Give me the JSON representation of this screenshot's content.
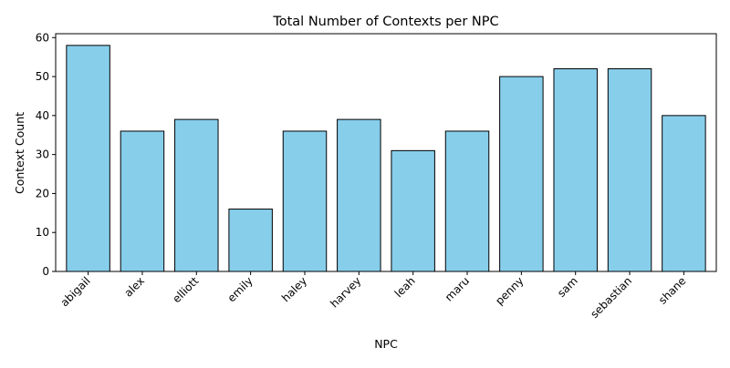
{
  "chart_data": {
    "type": "bar",
    "title": "Total Number of Contexts per NPC",
    "xlabel": "NPC",
    "ylabel": "Context Count",
    "categories": [
      "abigail",
      "alex",
      "elliott",
      "emily",
      "haley",
      "harvey",
      "leah",
      "maru",
      "penny",
      "sam",
      "sebastian",
      "shane"
    ],
    "values": [
      58,
      36,
      39,
      16,
      36,
      39,
      31,
      36,
      50,
      52,
      52,
      40
    ],
    "ylim": [
      0,
      61
    ],
    "yticks": [
      0,
      10,
      20,
      30,
      40,
      50,
      60
    ],
    "grid": false,
    "legend": "none",
    "bar_color": "#87ceeb",
    "edge_color": "#000000",
    "xtick_rotation": 45
  }
}
